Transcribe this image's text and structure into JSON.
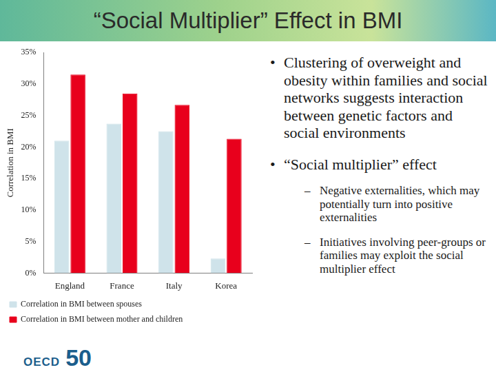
{
  "slide": {
    "title": "“Social Multiplier” Effect in BMI",
    "bullets": [
      {
        "text": "Clustering of overweight and obesity within families and social networks suggests interaction between genetic factors and social environments",
        "sub": []
      },
      {
        "text": "“Social multiplier” effect",
        "sub": [
          "Negative externalities, which may potentially turn into positive externalities",
          "Initiatives involving peer-groups or families may exploit the social multiplier effect"
        ]
      }
    ],
    "logo": {
      "text": "OECD",
      "number": "50"
    }
  },
  "chart_data": {
    "type": "bar",
    "y_label": "Correlation in BMI",
    "categories": [
      "England",
      "France",
      "Italy",
      "Korea"
    ],
    "series": [
      {
        "name": "Correlation in BMI between spouses",
        "color": "#cfe3ea",
        "values": [
          21,
          23.7,
          22.5,
          2.3
        ]
      },
      {
        "name": "Correlation in BMI between mother and children",
        "color": "#e8001c",
        "values": [
          31.5,
          28.5,
          26.7,
          21.3
        ]
      }
    ],
    "ylim": [
      0,
      35
    ],
    "yticks": [
      {
        "value": 0,
        "label": "0%"
      },
      {
        "value": 5,
        "label": "5%"
      },
      {
        "value": 10,
        "label": "10%"
      },
      {
        "value": 15,
        "label": "15%"
      },
      {
        "value": 20,
        "label": "20%"
      },
      {
        "value": 25,
        "label": "25%"
      },
      {
        "value": 30,
        "label": "30%"
      },
      {
        "value": 35,
        "label": "35%"
      }
    ],
    "grid": false,
    "legend": "bottom"
  }
}
